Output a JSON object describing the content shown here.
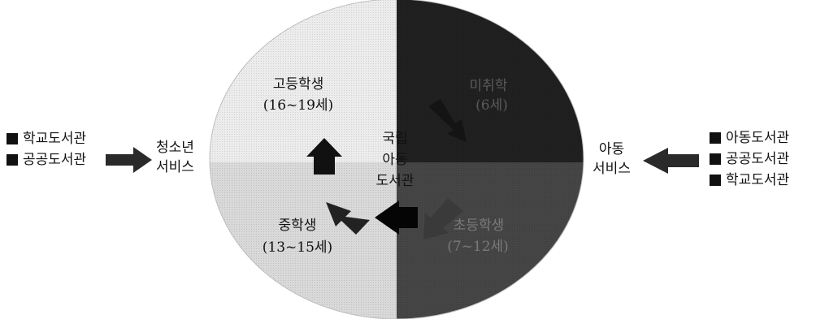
{
  "left_legend": {
    "items": [
      "학교도서관",
      "공공도서관"
    ]
  },
  "right_legend": {
    "items": [
      "아동도서관",
      "공공도서관",
      "학교도서관"
    ]
  },
  "youth_service": {
    "line1": "청소년",
    "line2": "서비스"
  },
  "child_service": {
    "line1": "아동",
    "line2": "서비스"
  },
  "center": {
    "line1": "국립",
    "line2": "아동",
    "line3": "도서관"
  },
  "quadrants": {
    "high": {
      "name": "고등학생",
      "age": "(16~19세)",
      "color": "#ececec"
    },
    "middle": {
      "name": "중학생",
      "age": "(13~15세)",
      "color": "#d9d9d9"
    },
    "preschool": {
      "name": "미취학",
      "age": "(6세)",
      "color": "#202020"
    },
    "elementary": {
      "name": "초등학생",
      "age": "(7~12세)",
      "color": "#454545"
    }
  },
  "arrow_color": "#111111"
}
